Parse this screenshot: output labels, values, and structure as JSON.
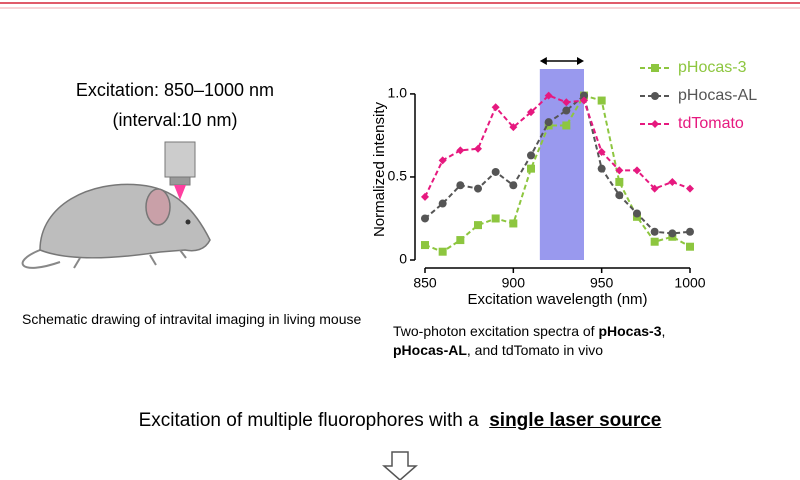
{
  "slide": {
    "left_heading": [
      "Excitation: 850–1000 nm",
      "(interval:10 nm)"
    ],
    "left_caption": "Schematic drawing of intravital imaging in living mouse",
    "right_caption": [
      {
        "text": "Two-photon excitation spectra of ",
        "bold": false
      },
      {
        "text": "pHocas-3",
        "bold": true
      },
      {
        "text": ", ",
        "bold": false
      },
      {
        "text": "pHocas-AL",
        "bold": true
      },
      {
        "text": ", and tdTomato in vivo",
        "bold": false
      }
    ],
    "conclusion": "Excitation of multiple fluorophores with a",
    "conclusion_emphasis": "single laser source"
  },
  "chart_data": {
    "type": "line",
    "x_label": "Excitation wavelength (nm)",
    "y_label": "Normalized intensity",
    "x": [
      850,
      860,
      870,
      880,
      890,
      900,
      910,
      920,
      930,
      940,
      950,
      960,
      970,
      980,
      990,
      1000
    ],
    "series": [
      {
        "name": "pHocas-3",
        "color": "#8dc63f",
        "marker": "square",
        "values": [
          0.09,
          0.05,
          0.12,
          0.21,
          0.25,
          0.22,
          0.55,
          0.81,
          0.81,
          0.99,
          0.96,
          0.47,
          0.26,
          0.11,
          0.14,
          0.08
        ]
      },
      {
        "name": "pHocas-AL",
        "color": "#555555",
        "marker": "circle",
        "values": [
          0.25,
          0.34,
          0.45,
          0.43,
          0.53,
          0.45,
          0.63,
          0.83,
          0.9,
          0.99,
          0.55,
          0.39,
          0.28,
          0.17,
          0.16,
          0.17
        ]
      },
      {
        "name": "tdTomato",
        "color": "#e6197f",
        "marker": "diamond",
        "values": [
          0.38,
          0.6,
          0.66,
          0.67,
          0.92,
          0.8,
          0.89,
          0.99,
          0.95,
          0.96,
          0.65,
          0.54,
          0.54,
          0.43,
          0.47,
          0.43
        ]
      }
    ],
    "highlight_range": [
      915,
      940
    ],
    "highlight_color": "#9999ee",
    "xlim": [
      850,
      1000
    ],
    "ylim": [
      0,
      1.15
    ],
    "xticks": [
      850,
      900,
      950,
      1000
    ],
    "yticks": [
      0,
      0.5,
      {
        "value": 1,
        "label": "1.0"
      }
    ],
    "legend": "top-right"
  }
}
